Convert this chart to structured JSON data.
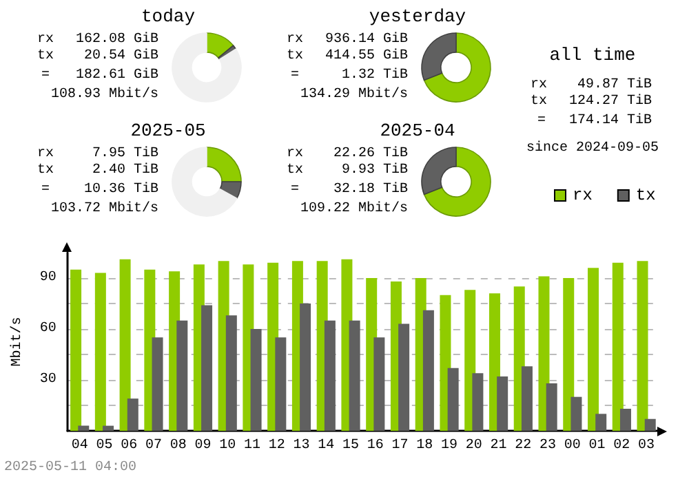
{
  "chart_data": [
    {
      "type": "donut",
      "title": "today",
      "categories": [
        null,
        null,
        null
      ],
      "values": [
        14,
        2,
        84
      ],
      "colors": [
        "#90cc00",
        "#606060",
        "#f0f0f0"
      ],
      "annotations": [
        "rx",
        "162.08 GiB",
        "tx",
        "20.54 GiB",
        "=",
        "182.61 GiB",
        "108.93 Mbit/s"
      ]
    },
    {
      "type": "donut",
      "title": "yesterday",
      "categories": [
        null,
        null
      ],
      "values": [
        69,
        31
      ],
      "colors": [
        "#90cc00",
        "#606060"
      ],
      "annotations": [
        "rx",
        "936.14 GiB",
        "tx",
        "414.55 GiB",
        "=",
        "1.32 TiB",
        "134.29 Mbit/s"
      ]
    },
    {
      "type": "other",
      "title": "all time",
      "annotations": [
        "rx",
        "49.87 TiB",
        "tx",
        "124.27 TiB",
        "=",
        "174.14 TiB",
        "since 2024-09-05"
      ]
    },
    {
      "type": "donut",
      "title": "2025-05",
      "categories": [
        null,
        null,
        null
      ],
      "values": [
        25,
        8,
        67
      ],
      "colors": [
        "#90cc00",
        "#606060",
        "#f0f0f0"
      ],
      "annotations": [
        "rx",
        "7.95 TiB",
        "tx",
        "2.40 TiB",
        "=",
        "10.36 TiB",
        "103.72 Mbit/s"
      ]
    },
    {
      "type": "donut",
      "title": "2025-04",
      "categories": [
        null,
        null
      ],
      "values": [
        69,
        31
      ],
      "colors": [
        "#90cc00",
        "#606060"
      ],
      "annotations": [
        "rx",
        "22.26 TiB",
        "tx",
        "9.93 TiB",
        "=",
        "32.18 TiB",
        "109.22 Mbit/s"
      ]
    },
    {
      "type": "bar",
      "ylabel": "Mbit/s",
      "categories": [
        "04",
        "05",
        "06",
        "07",
        "08",
        "09",
        "10",
        "11",
        "12",
        "13",
        "14",
        "15",
        "16",
        "17",
        "18",
        "19",
        "20",
        "21",
        "22",
        "23",
        "00",
        "01",
        "02",
        "03"
      ],
      "series": [
        {
          "name": "rx",
          "color": "#90cc00",
          "values": [
            95,
            93,
            101,
            95,
            94,
            98,
            100,
            98,
            99,
            100,
            100,
            101,
            90,
            88,
            90,
            80,
            83,
            81,
            85,
            91,
            90,
            96,
            99,
            100
          ]
        },
        {
          "name": "tx",
          "color": "#606060",
          "values": [
            3,
            3,
            19,
            55,
            65,
            74,
            68,
            60,
            55,
            75,
            65,
            65,
            55,
            63,
            71,
            37,
            34,
            32,
            38,
            28,
            20,
            10,
            13,
            7
          ]
        }
      ],
      "ylim": [
        0,
        105
      ],
      "yticks": [
        {
          "value": 15,
          "label": null
        },
        30,
        {
          "value": 45,
          "label": null
        },
        60,
        {
          "value": 75,
          "label": null
        },
        90
      ],
      "grid": "y",
      "legend": "top right",
      "annotations": [
        "2025-05-11 04:00"
      ]
    }
  ]
}
